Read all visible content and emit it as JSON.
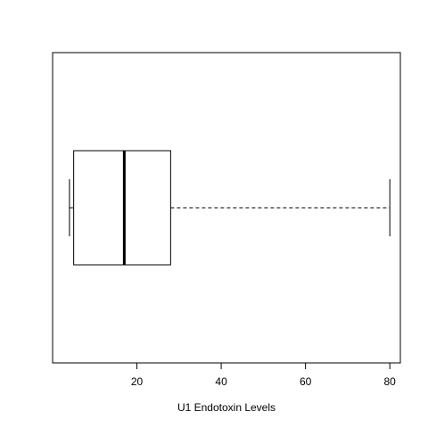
{
  "chart_data": {
    "type": "boxplot",
    "orientation": "horizontal",
    "title": "",
    "xlabel": "U1 Endotoxin Levels",
    "ylabel": "",
    "xlim": [
      0,
      82.5
    ],
    "xticks": [
      20,
      40,
      60,
      80
    ],
    "xtick_labels": [
      "20",
      "40",
      "60",
      "80"
    ],
    "grid": false,
    "series": [
      {
        "whisker_low": 4,
        "q1": 5,
        "median": 17,
        "q3": 28,
        "whisker_high": 80,
        "outliers": []
      }
    ],
    "colors": {
      "line": "#000000",
      "box_fill": "#ffffff",
      "background": "#ffffff"
    }
  }
}
